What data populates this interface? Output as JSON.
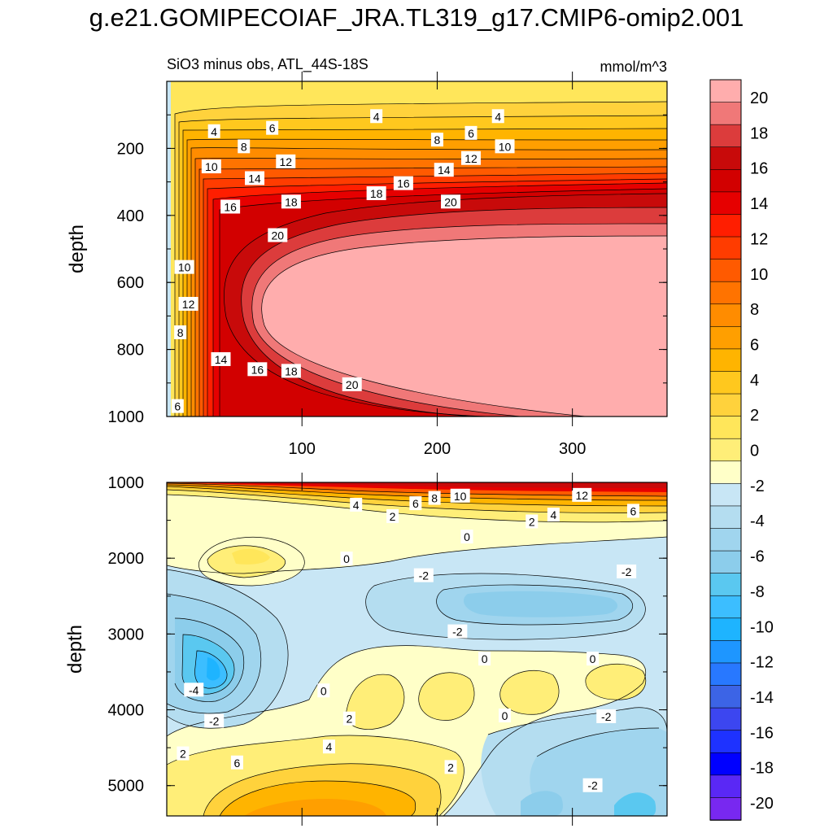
{
  "figure_title": "g.e21.GOMIPECOIAF_JRA.TL319_g17.CMIP6-omip2.001",
  "colors": {
    "pink": "#ffadad",
    "rose": "#f07878",
    "crimson": "#dc3c3c",
    "dark_red": "#c80a0a",
    "red": "#ff1e00",
    "orange_red": "#ff5a00",
    "orange": "#ff8c00",
    "amber": "#ffb400",
    "gold": "#ffd23c",
    "pale_yellow": "#ffee78",
    "cream": "#ffffc8",
    "light_blue": "#c8e6f5",
    "sky_blue": "#8ccdeb",
    "cyan_blue": "#3cbeff",
    "blue": "#1e96ff",
    "deep_blue": "#1e32ff",
    "purple": "#7828f0"
  },
  "chart_data": [
    {
      "type": "contour",
      "panel": "upper",
      "subtitle": "SiO3 minus obs, ATL_44S-18S",
      "units": "mmol/m^3",
      "ylabel": "depth",
      "xlabel": "",
      "xlim": [
        0,
        370
      ],
      "ylim": [
        1000,
        0
      ],
      "x_ticks": [
        100,
        200,
        300
      ],
      "y_ticks": [
        200,
        400,
        600,
        800,
        1000
      ],
      "x_tick_labels": [
        "100",
        "200",
        "300"
      ],
      "y_tick_labels": [
        "200",
        "400",
        "600",
        "800",
        "1000"
      ],
      "contour_labels": [
        {
          "text": "4",
          "x": 155,
          "y": 105
        },
        {
          "text": "4",
          "x": 245,
          "y": 105
        },
        {
          "text": "4",
          "x": 35,
          "y": 150
        },
        {
          "text": "6",
          "x": 78,
          "y": 140
        },
        {
          "text": "6",
          "x": 225,
          "y": 155
        },
        {
          "text": "8",
          "x": 57,
          "y": 195
        },
        {
          "text": "8",
          "x": 200,
          "y": 175
        },
        {
          "text": "10",
          "x": 33,
          "y": 255
        },
        {
          "text": "10",
          "x": 250,
          "y": 195
        },
        {
          "text": "12",
          "x": 88,
          "y": 240
        },
        {
          "text": "12",
          "x": 225,
          "y": 230
        },
        {
          "text": "14",
          "x": 65,
          "y": 290
        },
        {
          "text": "14",
          "x": 205,
          "y": 265
        },
        {
          "text": "16",
          "x": 47,
          "y": 375
        },
        {
          "text": "16",
          "x": 175,
          "y": 305
        },
        {
          "text": "18",
          "x": 92,
          "y": 360
        },
        {
          "text": "18",
          "x": 155,
          "y": 335
        },
        {
          "text": "20",
          "x": 82,
          "y": 460
        },
        {
          "text": "20",
          "x": 210,
          "y": 360
        },
        {
          "text": "10",
          "x": 13,
          "y": 555
        },
        {
          "text": "12",
          "x": 16,
          "y": 665
        },
        {
          "text": "8",
          "x": 10,
          "y": 750
        },
        {
          "text": "14",
          "x": 40,
          "y": 830
        },
        {
          "text": "16",
          "x": 67,
          "y": 860
        },
        {
          "text": "18",
          "x": 92,
          "y": 865
        },
        {
          "text": "20",
          "x": 137,
          "y": 905
        },
        {
          "text": "6",
          "x": 8,
          "y": 970
        }
      ]
    },
    {
      "type": "contour",
      "panel": "lower",
      "subtitle": "",
      "ylabel": "depth",
      "xlabel": "",
      "xlim": [
        0,
        370
      ],
      "ylim": [
        5400,
        1000
      ],
      "y_ticks": [
        1000,
        2000,
        3000,
        4000,
        5000
      ],
      "y_tick_labels": [
        "1000",
        "2000",
        "3000",
        "4000",
        "5000"
      ],
      "contour_labels": [
        {
          "text": "4",
          "x": 140,
          "y": 1300
        },
        {
          "text": "2",
          "x": 167,
          "y": 1450
        },
        {
          "text": "6",
          "x": 184,
          "y": 1280
        },
        {
          "text": "8",
          "x": 198,
          "y": 1210
        },
        {
          "text": "10",
          "x": 217,
          "y": 1180
        },
        {
          "text": "12",
          "x": 307,
          "y": 1170
        },
        {
          "text": "4",
          "x": 286,
          "y": 1430
        },
        {
          "text": "2",
          "x": 270,
          "y": 1520
        },
        {
          "text": "6",
          "x": 345,
          "y": 1380
        },
        {
          "text": "0",
          "x": 222,
          "y": 1720
        },
        {
          "text": "0",
          "x": 133,
          "y": 2010
        },
        {
          "text": "-2",
          "x": 190,
          "y": 2230
        },
        {
          "text": "-2",
          "x": 340,
          "y": 2180
        },
        {
          "text": "-2",
          "x": 215,
          "y": 2970
        },
        {
          "text": "0",
          "x": 235,
          "y": 3330
        },
        {
          "text": "0",
          "x": 315,
          "y": 3330
        },
        {
          "text": "0",
          "x": 116,
          "y": 3750
        },
        {
          "text": "-4",
          "x": 20,
          "y": 3740
        },
        {
          "text": "0",
          "x": 250,
          "y": 4080
        },
        {
          "text": "-2",
          "x": 35,
          "y": 4150
        },
        {
          "text": "-2",
          "x": 325,
          "y": 4090
        },
        {
          "text": "2",
          "x": 135,
          "y": 4120
        },
        {
          "text": "4",
          "x": 120,
          "y": 4490
        },
        {
          "text": "2",
          "x": 12,
          "y": 4580
        },
        {
          "text": "6",
          "x": 52,
          "y": 4700
        },
        {
          "text": "2",
          "x": 210,
          "y": 4760
        },
        {
          "text": "-2",
          "x": 315,
          "y": 5000
        }
      ]
    }
  ],
  "colorbar": {
    "labels": [
      "20",
      "18",
      "16",
      "14",
      "12",
      "10",
      "8",
      "6",
      "4",
      "2",
      "0",
      "-2",
      "-4",
      "-6",
      "-8",
      "-10",
      "-12",
      "-14",
      "-16",
      "-18",
      "-20"
    ],
    "colors": [
      "#ffadad",
      "#f07878",
      "#dc3c3c",
      "#c80a0a",
      "#d20000",
      "#e60000",
      "#ff1e00",
      "#ff3c00",
      "#ff5a00",
      "#ff7300",
      "#ff8c00",
      "#ff9f00",
      "#ffb400",
      "#ffc81e",
      "#ffd23c",
      "#ffe65a",
      "#ffee78",
      "#ffffc8",
      "#c8e6f5",
      "#b4ddf0",
      "#a0d5ee",
      "#8ccdeb",
      "#5ac8f0",
      "#3cbeff",
      "#1eb4ff",
      "#1e96ff",
      "#2878ff",
      "#3c64e6",
      "#3c46f0",
      "#1e32ff",
      "#0000ff",
      "#5a28f5",
      "#7828f0"
    ]
  }
}
